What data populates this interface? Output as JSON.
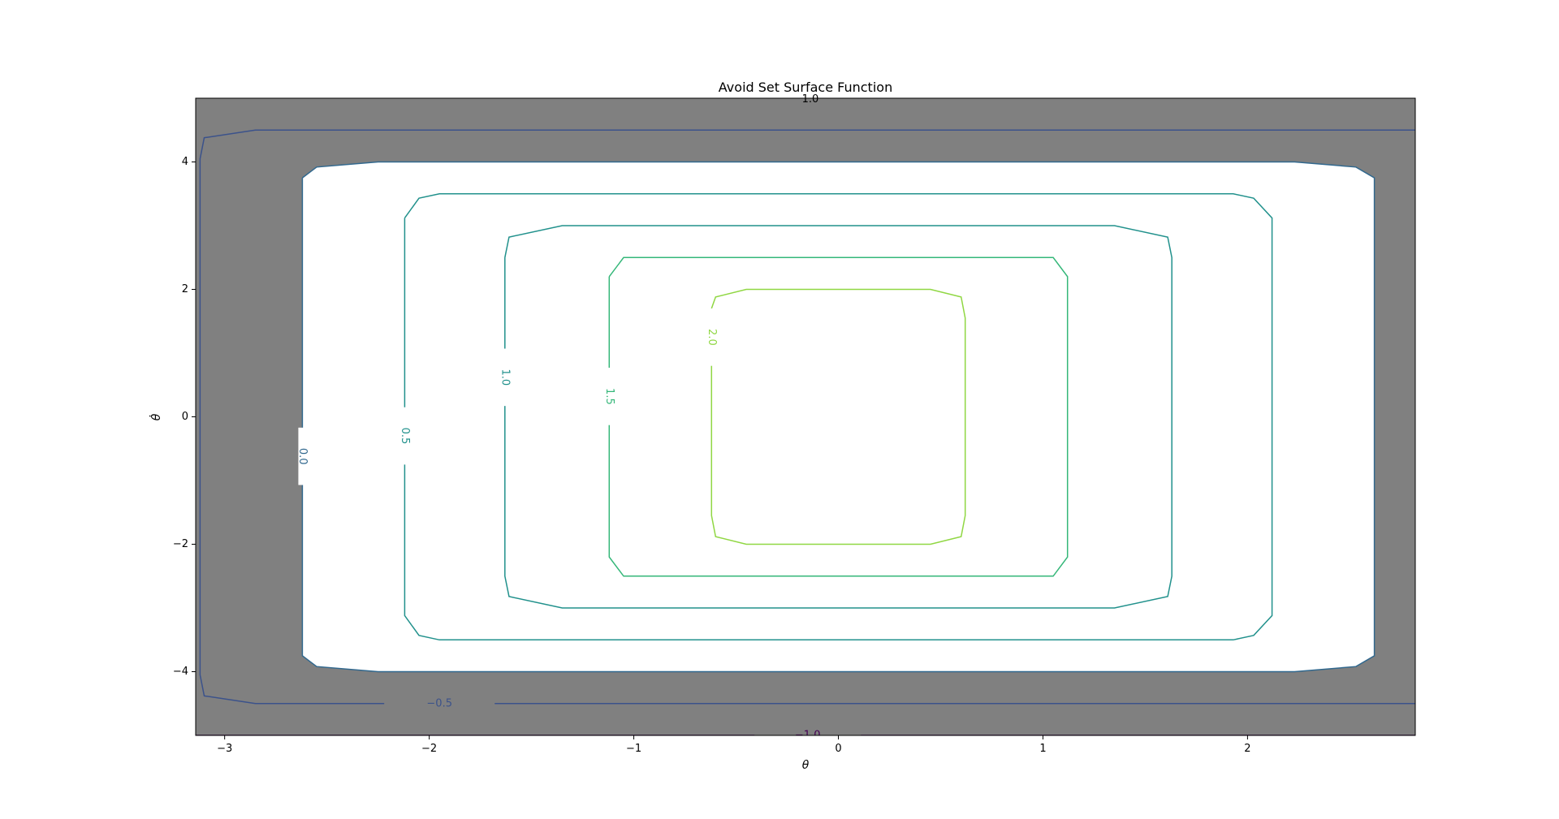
{
  "chart_data": {
    "type": "contour",
    "title": "Avoid Set Surface Function",
    "xlabel": "θ",
    "ylabel": "θ̇",
    "xlim": [
      -3.14159,
      2.82
    ],
    "ylim": [
      -5,
      5
    ],
    "xticks": [
      -3,
      -2,
      -1,
      0,
      1,
      2
    ],
    "yticks": [
      -4,
      -2,
      0,
      2,
      4
    ],
    "xtick_labels": [
      "−3",
      "−2",
      "−1",
      "0",
      "1",
      "2"
    ],
    "ytick_labels": [
      "−4",
      "−2",
      "0",
      "2",
      "4"
    ],
    "avoid_region_color": "#808080",
    "safe_region_color": "#ffffff",
    "levels": [
      {
        "value": -1.0,
        "label": "−1.0",
        "color": "#440154",
        "path": [
          [
            -3.14,
            -5.0
          ],
          [
            2.82,
            -5.0
          ]
        ],
        "label_at": [
          -0.15,
          -5.0
        ],
        "label_rot": 0,
        "label_gap": 0.52
      },
      {
        "value": -0.5,
        "label": "−0.5",
        "color": "#3b528b",
        "path": [
          [
            2.82,
            -4.5
          ],
          [
            -2.85,
            -4.5
          ],
          [
            -3.1,
            -4.38
          ],
          [
            -3.12,
            -4.05
          ],
          [
            -3.12,
            4.05
          ],
          [
            -3.1,
            4.38
          ],
          [
            -2.85,
            4.5
          ],
          [
            2.82,
            4.5
          ]
        ],
        "label_at": [
          -1.95,
          -4.5
        ],
        "label_rot": 0,
        "label_gap": 0.54
      },
      {
        "value": 0.0,
        "label": "0.0",
        "color": "#31688e",
        "path": [
          [
            -2.62,
            3.75
          ],
          [
            -2.55,
            3.92
          ],
          [
            -2.25,
            4.0
          ],
          [
            2.23,
            4.0
          ],
          [
            2.53,
            3.92
          ],
          [
            2.62,
            3.75
          ],
          [
            2.62,
            -3.75
          ],
          [
            2.53,
            -3.92
          ],
          [
            2.23,
            -4.0
          ],
          [
            -2.25,
            -4.0
          ],
          [
            -2.55,
            -3.92
          ],
          [
            -2.62,
            -3.75
          ],
          [
            -2.62,
            3.75
          ]
        ],
        "label_at": [
          -2.62,
          -0.62
        ],
        "label_rot": 90,
        "label_gap": 0.9
      },
      {
        "value": 0.5,
        "label": "0.5",
        "color": "#21918c",
        "path": [
          [
            -2.12,
            3.12
          ],
          [
            -2.05,
            3.43
          ],
          [
            -1.95,
            3.5
          ],
          [
            1.93,
            3.5
          ],
          [
            2.03,
            3.43
          ],
          [
            2.12,
            3.12
          ],
          [
            2.12,
            -3.12
          ],
          [
            2.03,
            -3.43
          ],
          [
            1.93,
            -3.5
          ],
          [
            -1.95,
            -3.5
          ],
          [
            -2.05,
            -3.43
          ],
          [
            -2.12,
            -3.12
          ],
          [
            -2.12,
            3.12
          ]
        ],
        "label_at": [
          -2.12,
          -0.3
        ],
        "label_rot": 90,
        "label_gap": 0.9
      },
      {
        "value": 1.0,
        "label": "1.0",
        "color": "#21918c",
        "path": [
          [
            -1.63,
            2.5
          ],
          [
            -1.61,
            2.82
          ],
          [
            -1.35,
            3.0
          ],
          [
            1.35,
            3.0
          ],
          [
            1.61,
            2.82
          ],
          [
            1.63,
            2.5
          ],
          [
            1.63,
            -2.5
          ],
          [
            1.61,
            -2.82
          ],
          [
            1.35,
            -3.0
          ],
          [
            -1.35,
            -3.0
          ],
          [
            -1.61,
            -2.82
          ],
          [
            -1.63,
            -2.5
          ],
          [
            -1.63,
            2.5
          ]
        ],
        "label_at": [
          -1.63,
          0.62
        ],
        "label_rot": 90,
        "label_gap": 0.9
      },
      {
        "value": 1.5,
        "label": "1.5",
        "color": "#35b779",
        "path": [
          [
            -1.12,
            2.2
          ],
          [
            -1.05,
            2.5
          ],
          [
            1.05,
            2.5
          ],
          [
            1.12,
            2.2
          ],
          [
            1.12,
            -2.2
          ],
          [
            1.05,
            -2.5
          ],
          [
            -1.05,
            -2.5
          ],
          [
            -1.12,
            -2.2
          ],
          [
            -1.12,
            2.2
          ]
        ],
        "label_at": [
          -1.12,
          0.32
        ],
        "label_rot": 90,
        "label_gap": 0.9
      },
      {
        "value": 2.0,
        "label": "2.0",
        "color": "#90d743",
        "path": [
          [
            -0.62,
            1.7
          ],
          [
            -0.6,
            1.88
          ],
          [
            -0.45,
            2.0
          ],
          [
            0.45,
            2.0
          ],
          [
            0.6,
            1.88
          ],
          [
            0.62,
            1.55
          ],
          [
            0.62,
            -1.55
          ],
          [
            0.6,
            -1.88
          ],
          [
            0.45,
            -2.0
          ],
          [
            -0.45,
            -2.0
          ],
          [
            -0.6,
            -1.88
          ],
          [
            -0.62,
            -1.55
          ],
          [
            -0.62,
            1.7
          ]
        ],
        "label_at": [
          -0.62,
          1.25
        ],
        "label_rot": 90,
        "label_gap": 0.9
      }
    ],
    "top_label": {
      "text": "1.0",
      "color": "#440154"
    }
  }
}
